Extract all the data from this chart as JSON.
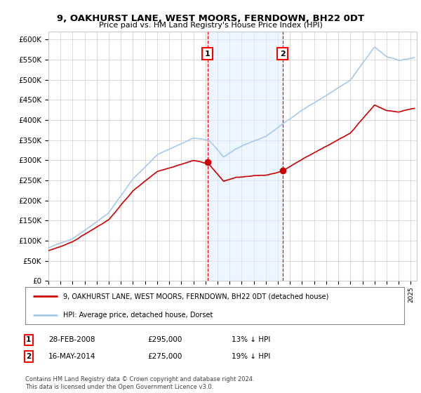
{
  "title": "9, OAKHURST LANE, WEST MOORS, FERNDOWN, BH22 0DT",
  "subtitle": "Price paid vs. HM Land Registry's House Price Index (HPI)",
  "ylim": [
    0,
    620000
  ],
  "yticks": [
    0,
    50000,
    100000,
    150000,
    200000,
    250000,
    300000,
    350000,
    400000,
    450000,
    500000,
    550000,
    600000
  ],
  "sale1_date": 2008.16,
  "sale1_price": 295000,
  "sale2_date": 2014.38,
  "sale2_price": 275000,
  "hpi_color": "#a8c8e8",
  "price_color": "#cc0000",
  "shade_color": "#ddeeff",
  "marker_color": "#cc0000",
  "legend_price_label": "9, OAKHURST LANE, WEST MOORS, FERNDOWN, BH22 0DT (detached house)",
  "legend_hpi_label": "HPI: Average price, detached house, Dorset",
  "table_row1": [
    "1",
    "28-FEB-2008",
    "£295,000",
    "13% ↓ HPI"
  ],
  "table_row2": [
    "2",
    "16-MAY-2014",
    "£275,000",
    "19% ↓ HPI"
  ],
  "footer": "Contains HM Land Registry data © Crown copyright and database right 2024.\nThis data is licensed under the Open Government Licence v3.0.",
  "bg_color": "#ffffff",
  "grid_color": "#cccccc",
  "xlim_left": 1995,
  "xlim_right": 2025.5
}
